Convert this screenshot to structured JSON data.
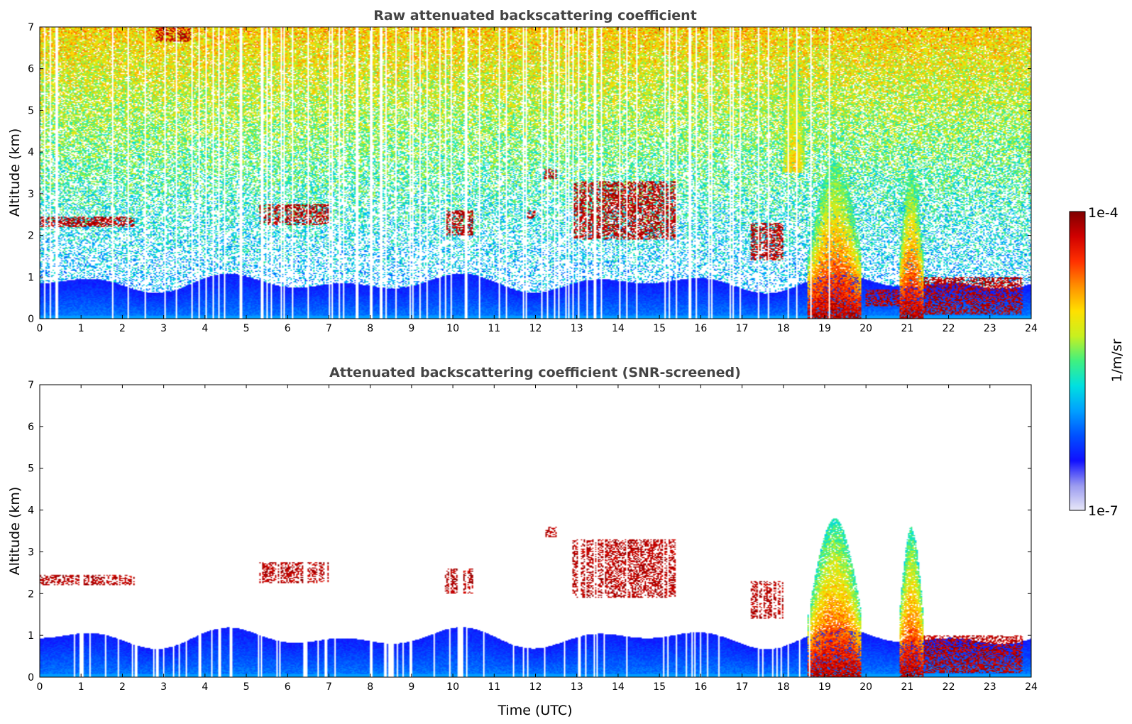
{
  "chart_data": [
    {
      "type": "heatmap",
      "title": "Raw attenuated backscattering coefficient",
      "xlabel": "",
      "ylabel": "Altitude (km)",
      "xlim": [
        0,
        24
      ],
      "ylim": [
        0,
        7
      ],
      "x_ticks": [
        "0",
        "1",
        "2",
        "3",
        "4",
        "5",
        "6",
        "7",
        "8",
        "9",
        "10",
        "11",
        "12",
        "13",
        "14",
        "15",
        "16",
        "17",
        "18",
        "19",
        "20",
        "21",
        "22",
        "23",
        "24"
      ],
      "y_ticks": [
        "0",
        "1",
        "2",
        "3",
        "4",
        "5",
        "6",
        "7"
      ],
      "grid": false,
      "screened": false,
      "color_scale": "log",
      "cloud_features": [
        {
          "x": [
            0.0,
            2.3
          ],
          "y": [
            2.2,
            2.45
          ]
        },
        {
          "x": [
            2.8,
            3.7
          ],
          "y": [
            6.65,
            7.0
          ]
        },
        {
          "x": [
            5.3,
            7.0
          ],
          "y": [
            2.25,
            2.75
          ]
        },
        {
          "x": [
            9.8,
            10.5
          ],
          "y": [
            2.0,
            2.6
          ]
        },
        {
          "x": [
            11.8,
            12.0
          ],
          "y": [
            2.4,
            2.6
          ]
        },
        {
          "x": [
            12.2,
            12.5
          ],
          "y": [
            3.35,
            3.6
          ]
        },
        {
          "x": [
            12.9,
            15.4
          ],
          "y": [
            1.9,
            3.3
          ]
        },
        {
          "x": [
            17.2,
            18.0
          ],
          "y": [
            1.4,
            2.3
          ]
        },
        {
          "x": [
            18.0,
            18.5
          ],
          "y": [
            3.5,
            7.0
          ]
        },
        {
          "x": [
            18.6,
            19.9
          ],
          "y": [
            0.0,
            3.8
          ]
        },
        {
          "x": [
            20.0,
            20.8
          ],
          "y": [
            0.3,
            0.7
          ]
        },
        {
          "x": [
            20.8,
            21.4
          ],
          "y": [
            0.0,
            3.6
          ]
        },
        {
          "x": [
            21.4,
            23.8
          ],
          "y": [
            0.1,
            1.0
          ]
        }
      ],
      "boundary_layer_top_km": 1.0
    },
    {
      "type": "heatmap",
      "title": "Attenuated backscattering coefficient (SNR-screened)",
      "xlabel": "Time (UTC)",
      "ylabel": "Altitude (km)",
      "xlim": [
        0,
        24
      ],
      "ylim": [
        0,
        7
      ],
      "x_ticks": [
        "0",
        "1",
        "2",
        "3",
        "4",
        "5",
        "6",
        "7",
        "8",
        "9",
        "10",
        "11",
        "12",
        "13",
        "14",
        "15",
        "16",
        "17",
        "18",
        "19",
        "20",
        "21",
        "22",
        "23",
        "24"
      ],
      "y_ticks": [
        "0",
        "1",
        "2",
        "3",
        "4",
        "5",
        "6",
        "7"
      ],
      "grid": false,
      "screened": true,
      "color_scale": "log",
      "cloud_features": [
        {
          "x": [
            0.0,
            2.3
          ],
          "y": [
            2.2,
            2.45
          ]
        },
        {
          "x": [
            5.3,
            7.0
          ],
          "y": [
            2.25,
            2.75
          ]
        },
        {
          "x": [
            9.8,
            10.5
          ],
          "y": [
            2.0,
            2.6
          ]
        },
        {
          "x": [
            12.2,
            12.5
          ],
          "y": [
            3.35,
            3.6
          ]
        },
        {
          "x": [
            12.9,
            15.4
          ],
          "y": [
            1.9,
            3.3
          ]
        },
        {
          "x": [
            17.2,
            18.0
          ],
          "y": [
            1.4,
            2.3
          ]
        },
        {
          "x": [
            18.6,
            19.9
          ],
          "y": [
            0.0,
            3.8
          ]
        },
        {
          "x": [
            20.8,
            21.4
          ],
          "y": [
            0.0,
            3.6
          ]
        },
        {
          "x": [
            21.4,
            23.8
          ],
          "y": [
            0.1,
            1.0
          ]
        }
      ],
      "boundary_layer_top_km": 1.1
    }
  ],
  "colorbar": {
    "label": "1/m/sr",
    "max_label": "1e-4",
    "min_label": "1e-7",
    "min_value": 1e-07,
    "max_value": 0.0001,
    "scale": "log",
    "colormap": [
      "#e8e8f8",
      "#9a9af0",
      "#1010ff",
      "#0050ff",
      "#00a0ff",
      "#00e0e0",
      "#40f080",
      "#c8f020",
      "#ffe000",
      "#ff9000",
      "#ff3000",
      "#d00000",
      "#800000"
    ]
  }
}
